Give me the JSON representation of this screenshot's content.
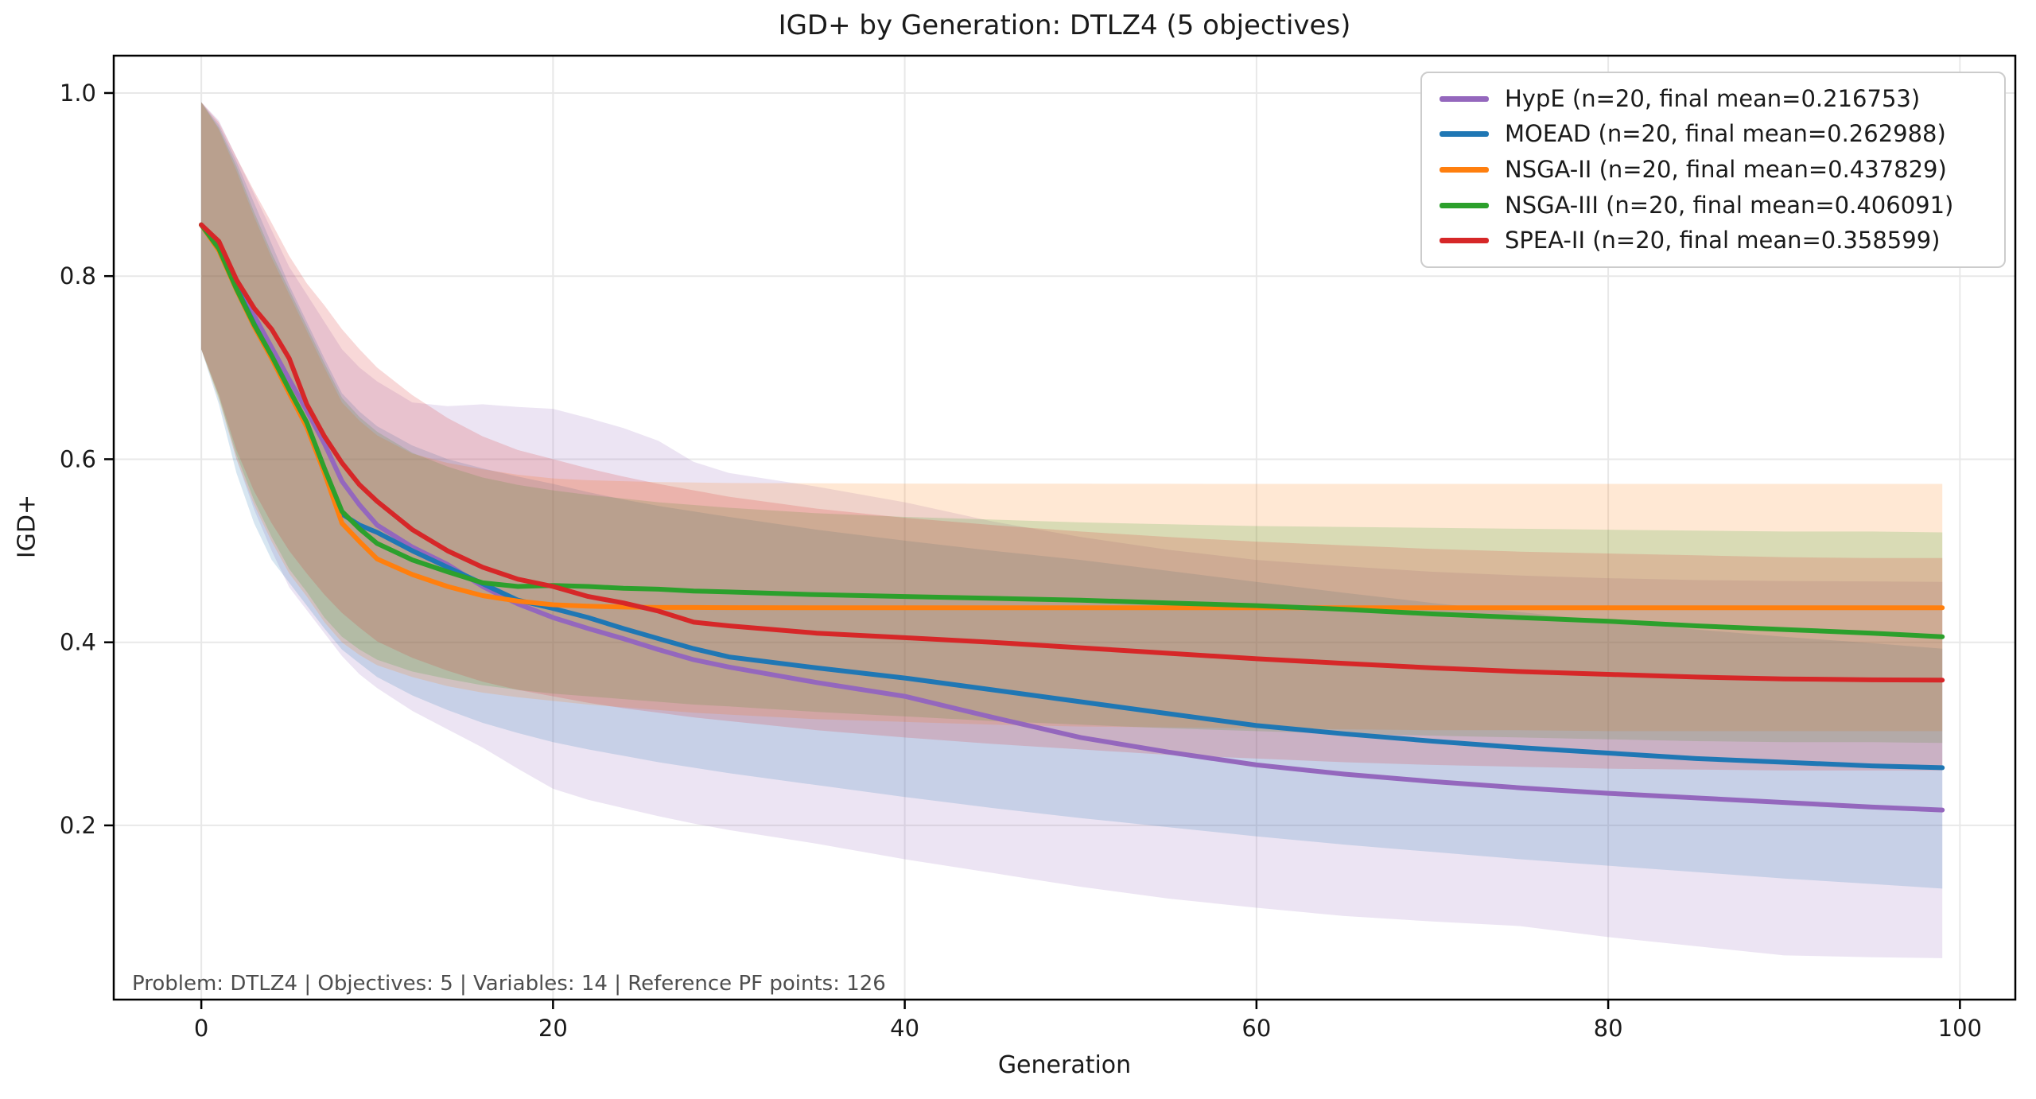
{
  "figure": {
    "background": "#ffffff"
  },
  "chart_data": {
    "type": "line",
    "title": "IGD+ by Generation: DTLZ4 (5 objectives)",
    "xlabel": "Generation",
    "ylabel": "IGD+",
    "footer": "Problem: DTLZ4 | Objectives: 5 | Variables: 14 | Reference PF points: 126",
    "grid": true,
    "legend_position": "upper right",
    "band_alpha": 0.18,
    "xlim": [
      -4.98,
      103.15
    ],
    "ylim": [
      0.0097,
      1.0408
    ],
    "xticks": [
      0,
      20,
      40,
      60,
      80,
      100
    ],
    "yticks": [
      0.2,
      0.4,
      0.6,
      0.8,
      1.0
    ],
    "colors": {
      "grid": "#e8e8e8",
      "axis": "#000000",
      "text": "#1a1a1a",
      "footer_text": "#4d4d4d",
      "legend_border": "#cccccc",
      "legend_bg": "#ffffff"
    },
    "x": [
      0,
      1,
      2,
      3,
      4,
      5,
      6,
      7,
      8,
      9,
      10,
      12,
      14,
      16,
      18,
      20,
      22,
      24,
      26,
      28,
      30,
      35,
      40,
      45,
      50,
      55,
      60,
      65,
      70,
      75,
      80,
      85,
      90,
      95,
      99
    ],
    "series": [
      {
        "name": "HypE",
        "label": "HypE (n=20, final mean=0.216753)",
        "n": 20,
        "final_mean": 0.216753,
        "color": "#9467bd",
        "mean": [
          0.856,
          0.835,
          0.795,
          0.757,
          0.722,
          0.687,
          0.653,
          0.617,
          0.576,
          0.55,
          0.528,
          0.504,
          0.485,
          0.461,
          0.442,
          0.427,
          0.415,
          0.404,
          0.392,
          0.381,
          0.373,
          0.356,
          0.341,
          0.318,
          0.296,
          0.28,
          0.266,
          0.256,
          0.248,
          0.241,
          0.235,
          0.23,
          0.225,
          0.22,
          0.2168
        ],
        "upper": [
          0.99,
          0.97,
          0.93,
          0.89,
          0.85,
          0.81,
          0.78,
          0.75,
          0.72,
          0.7,
          0.685,
          0.662,
          0.658,
          0.66,
          0.657,
          0.655,
          0.645,
          0.634,
          0.62,
          0.597,
          0.585,
          0.57,
          0.553,
          0.532,
          0.515,
          0.501,
          0.49,
          0.483,
          0.477,
          0.473,
          0.47,
          0.468,
          0.467,
          0.4665,
          0.466
        ],
        "lower": [
          0.72,
          0.67,
          0.6,
          0.545,
          0.5,
          0.46,
          0.435,
          0.41,
          0.385,
          0.365,
          0.35,
          0.325,
          0.305,
          0.285,
          0.262,
          0.24,
          0.228,
          0.219,
          0.21,
          0.202,
          0.195,
          0.18,
          0.163,
          0.148,
          0.133,
          0.12,
          0.11,
          0.101,
          0.095,
          0.09,
          0.078,
          0.068,
          0.058,
          0.056,
          0.055
        ]
      },
      {
        "name": "MOEAD",
        "label": "MOEAD (n=20, final mean=0.262988)",
        "n": 20,
        "final_mean": 0.262988,
        "color": "#1f77b4",
        "mean": [
          0.856,
          0.832,
          0.788,
          0.748,
          0.712,
          0.675,
          0.638,
          0.588,
          0.54,
          0.528,
          0.52,
          0.5,
          0.482,
          0.464,
          0.446,
          0.437,
          0.427,
          0.415,
          0.404,
          0.393,
          0.384,
          0.372,
          0.361,
          0.348,
          0.335,
          0.322,
          0.309,
          0.3,
          0.292,
          0.285,
          0.279,
          0.273,
          0.269,
          0.265,
          0.263
        ],
        "upper": [
          0.99,
          0.965,
          0.925,
          0.88,
          0.835,
          0.79,
          0.75,
          0.71,
          0.672,
          0.652,
          0.636,
          0.615,
          0.6,
          0.59,
          0.581,
          0.573,
          0.564,
          0.556,
          0.549,
          0.543,
          0.537,
          0.523,
          0.511,
          0.5,
          0.49,
          0.478,
          0.466,
          0.454,
          0.443,
          0.433,
          0.423,
          0.414,
          0.406,
          0.399,
          0.393
        ],
        "lower": [
          0.72,
          0.66,
          0.585,
          0.53,
          0.49,
          0.465,
          0.44,
          0.415,
          0.392,
          0.377,
          0.362,
          0.342,
          0.326,
          0.312,
          0.301,
          0.291,
          0.283,
          0.276,
          0.269,
          0.263,
          0.257,
          0.244,
          0.231,
          0.219,
          0.208,
          0.198,
          0.188,
          0.179,
          0.171,
          0.163,
          0.156,
          0.149,
          0.142,
          0.136,
          0.131
        ]
      },
      {
        "name": "NSGA-II",
        "label": "NSGA-II (n=20, final mean=0.437829)",
        "n": 20,
        "final_mean": 0.437829,
        "color": "#ff7f0e",
        "mean": [
          0.856,
          0.828,
          0.785,
          0.745,
          0.71,
          0.672,
          0.635,
          0.585,
          0.53,
          0.51,
          0.491,
          0.474,
          0.461,
          0.451,
          0.445,
          0.441,
          0.4395,
          0.4385,
          0.438,
          0.438,
          0.4379,
          0.4378,
          0.4378,
          0.4378,
          0.4378,
          0.4378,
          0.4378,
          0.4378,
          0.4378,
          0.4378,
          0.4378,
          0.4378,
          0.4378,
          0.4378,
          0.4378
        ],
        "upper": [
          0.99,
          0.96,
          0.915,
          0.865,
          0.82,
          0.78,
          0.74,
          0.7,
          0.662,
          0.642,
          0.626,
          0.606,
          0.596,
          0.589,
          0.583,
          0.579,
          0.577,
          0.576,
          0.575,
          0.5745,
          0.574,
          0.5736,
          0.5734,
          0.5733,
          0.5732,
          0.5731,
          0.573,
          0.573,
          0.573,
          0.573,
          0.573,
          0.573,
          0.573,
          0.573,
          0.573
        ],
        "lower": [
          0.72,
          0.665,
          0.6,
          0.55,
          0.51,
          0.475,
          0.45,
          0.422,
          0.4,
          0.386,
          0.375,
          0.362,
          0.352,
          0.345,
          0.34,
          0.336,
          0.332,
          0.329,
          0.326,
          0.323,
          0.321,
          0.316,
          0.313,
          0.31,
          0.308,
          0.307,
          0.306,
          0.305,
          0.304,
          0.304,
          0.303,
          0.303,
          0.303,
          0.303,
          0.303
        ]
      },
      {
        "name": "NSGA-III",
        "label": "NSGA-III (n=20, final mean=0.406091)",
        "n": 20,
        "final_mean": 0.406091,
        "color": "#2ca02c",
        "mean": [
          0.856,
          0.83,
          0.786,
          0.747,
          0.713,
          0.676,
          0.64,
          0.59,
          0.543,
          0.524,
          0.508,
          0.49,
          0.477,
          0.465,
          0.461,
          0.462,
          0.461,
          0.459,
          0.458,
          0.456,
          0.455,
          0.452,
          0.45,
          0.448,
          0.446,
          0.443,
          0.44,
          0.436,
          0.431,
          0.427,
          0.423,
          0.418,
          0.414,
          0.41,
          0.4061
        ],
        "upper": [
          0.99,
          0.962,
          0.92,
          0.87,
          0.825,
          0.785,
          0.745,
          0.705,
          0.667,
          0.646,
          0.63,
          0.607,
          0.592,
          0.58,
          0.572,
          0.566,
          0.561,
          0.557,
          0.553,
          0.55,
          0.547,
          0.541,
          0.537,
          0.534,
          0.531,
          0.529,
          0.527,
          0.526,
          0.525,
          0.524,
          0.523,
          0.522,
          0.521,
          0.521,
          0.52
        ],
        "lower": [
          0.72,
          0.667,
          0.605,
          0.555,
          0.515,
          0.48,
          0.455,
          0.427,
          0.406,
          0.392,
          0.381,
          0.368,
          0.36,
          0.353,
          0.348,
          0.344,
          0.341,
          0.338,
          0.335,
          0.332,
          0.33,
          0.324,
          0.319,
          0.314,
          0.31,
          0.306,
          0.303,
          0.3,
          0.298,
          0.296,
          0.294,
          0.292,
          0.291,
          0.291,
          0.29
        ]
      },
      {
        "name": "SPEA-II",
        "label": "SPEA-II (n=20, final mean=0.358599)",
        "n": 20,
        "final_mean": 0.358599,
        "color": "#d62728",
        "mean": [
          0.856,
          0.838,
          0.796,
          0.765,
          0.742,
          0.71,
          0.66,
          0.625,
          0.596,
          0.572,
          0.554,
          0.523,
          0.5,
          0.482,
          0.469,
          0.461,
          0.45,
          0.443,
          0.434,
          0.422,
          0.418,
          0.41,
          0.405,
          0.4,
          0.394,
          0.388,
          0.382,
          0.377,
          0.372,
          0.368,
          0.365,
          0.362,
          0.36,
          0.359,
          0.3586
        ],
        "upper": [
          0.99,
          0.968,
          0.93,
          0.893,
          0.858,
          0.822,
          0.792,
          0.768,
          0.742,
          0.72,
          0.7,
          0.67,
          0.645,
          0.625,
          0.61,
          0.6,
          0.59,
          0.581,
          0.573,
          0.566,
          0.559,
          0.546,
          0.536,
          0.528,
          0.521,
          0.515,
          0.51,
          0.506,
          0.502,
          0.499,
          0.497,
          0.495,
          0.493,
          0.492,
          0.492
        ],
        "lower": [
          0.72,
          0.67,
          0.61,
          0.565,
          0.53,
          0.5,
          0.475,
          0.452,
          0.432,
          0.416,
          0.401,
          0.383,
          0.369,
          0.357,
          0.348,
          0.341,
          0.334,
          0.328,
          0.323,
          0.318,
          0.314,
          0.304,
          0.296,
          0.289,
          0.283,
          0.277,
          0.273,
          0.269,
          0.266,
          0.264,
          0.262,
          0.261,
          0.26,
          0.26,
          0.26
        ]
      }
    ]
  }
}
